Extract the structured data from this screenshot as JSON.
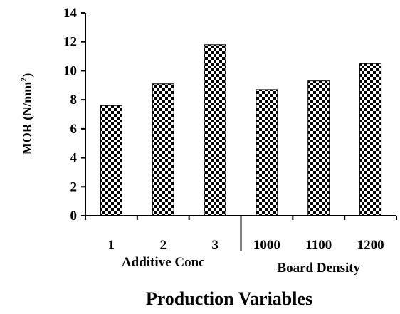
{
  "chart_data": {
    "type": "bar",
    "categories": [
      "1",
      "2",
      "3",
      "1000",
      "1100",
      "1200"
    ],
    "values": [
      7.6,
      9.1,
      11.8,
      8.7,
      9.3,
      10.5
    ],
    "groups": [
      {
        "label": "Additive Conc",
        "categories": [
          "1",
          "2",
          "3"
        ]
      },
      {
        "label": "Board Density",
        "categories": [
          "1000",
          "1100",
          "1200"
        ]
      }
    ],
    "xlabel": "Production Variables",
    "ylabel": "MOR (N/mm²)",
    "ylabel_main": "MOR (N/mm",
    "ylabel_sup": "2",
    "ylabel_close": ")",
    "ylim": [
      0,
      14
    ],
    "yticks": [
      0,
      2,
      4,
      6,
      8,
      10,
      12,
      14
    ],
    "bar_pattern": "black-white checkerboard",
    "grid": false,
    "legend": false
  }
}
